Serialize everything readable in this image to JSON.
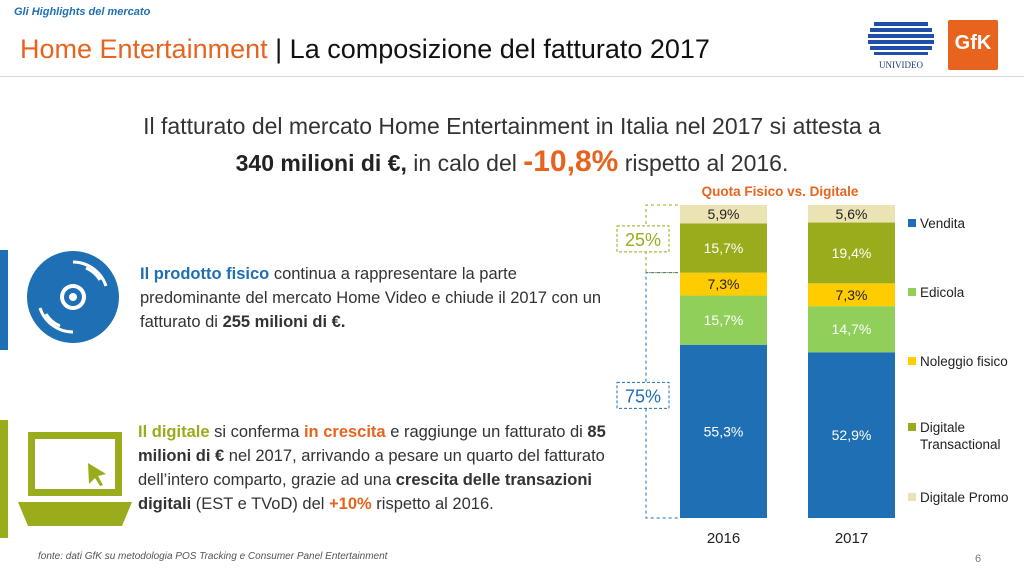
{
  "header": {
    "kicker": "Gli Highlights del mercato",
    "title_part1": "Home Entertainment",
    "title_sep": "|",
    "title_part2": "La composizione del fatturato 2017",
    "logo_univideo_text": "UNIVIDEO",
    "logo_gfk_text": "GfK"
  },
  "headline": {
    "line1": "Il fatturato del mercato Home Entertainment in Italia nel 2017 si attesta a",
    "line2_bold": "340 milioni di €,",
    "line2_mid": " in calo del ",
    "line2_big": "-10,8%",
    "line2_end": " rispetto al 2016."
  },
  "physical": {
    "bold_lead": "Il prodotto fisico",
    "text1": " continua a rappresentare la parte predominante del mercato Home Video e chiude il 2017 con un fatturato di ",
    "bold_amount": "255 milioni di €.",
    "icon": "disc-icon"
  },
  "digital": {
    "bold_lead": "Il digitale",
    "text1": " si conferma ",
    "orange1": "in crescita",
    "text2": " e raggiunge un fatturato di ",
    "bold_amount": "85 milioni di €",
    "text3": " nel 2017, arrivando a pesare un quarto del fatturato dell’intero comparto, grazie ad una ",
    "bold_growth": "crescita delle transazioni digitali",
    "text4": " (EST e TVoD) del ",
    "orange2": "+10%",
    "text5": " rispetto al 2016.",
    "icon": "laptop-icon"
  },
  "footer": {
    "source": "fonte: dati GfK su metodologia POS Tracking e Consumer Panel Entertainment",
    "page": "6"
  },
  "colors": {
    "orange": "#e8641e",
    "blue": "#1f6fb4",
    "olive": "#9aab1c",
    "green": "#8fcf5a",
    "yellow": "#ffcc00",
    "beige": "#ebe3b4"
  },
  "chart_data": {
    "type": "bar",
    "stacked": true,
    "title": "Quota Fisico vs. Digitale",
    "categories": [
      "2016",
      "2017"
    ],
    "series": [
      {
        "name": "Vendita",
        "color": "#1f6fb4",
        "values": [
          55.3,
          52.9
        ],
        "labels": [
          "55,3%",
          "52,9%"
        ]
      },
      {
        "name": "Edicola",
        "color": "#8fcf5a",
        "values": [
          15.7,
          14.7
        ],
        "labels": [
          "15,7%",
          "14,7%"
        ]
      },
      {
        "name": "Noleggio fisico",
        "color": "#ffcc00",
        "values": [
          7.3,
          7.3
        ],
        "labels": [
          "7,3%",
          "7,3%"
        ]
      },
      {
        "name": "Digitale Transactional",
        "color": "#9aab1c",
        "values": [
          15.7,
          19.4
        ],
        "labels": [
          "15,7%",
          "19,4%"
        ]
      },
      {
        "name": "Digitale Promo",
        "color": "#ebe3b4",
        "values": [
          5.9,
          5.6
        ],
        "labels": [
          "5,9%",
          "5,6%"
        ]
      }
    ],
    "annotations": [
      {
        "text": "75%",
        "group": "physical"
      },
      {
        "text": "25%",
        "group": "digital"
      }
    ],
    "legend_position": "right",
    "ylim": [
      0,
      100
    ]
  }
}
